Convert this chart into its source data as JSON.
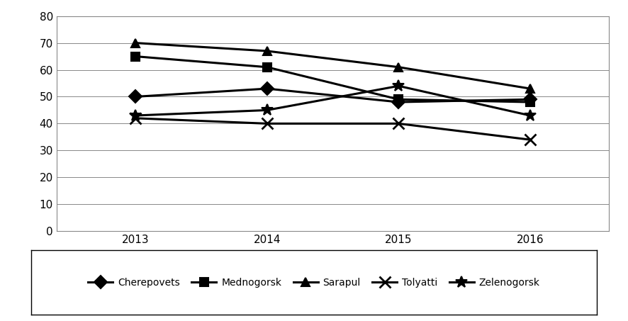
{
  "years": [
    2013,
    2014,
    2015,
    2016
  ],
  "series": {
    "Cherepovets": [
      50,
      53,
      48,
      49
    ],
    "Mednogorsk": [
      65,
      61,
      49,
      48
    ],
    "Sarapul": [
      70,
      67,
      61,
      53
    ],
    "Tolyatti": [
      42,
      40,
      40,
      34
    ],
    "Zelenogorsk": [
      43,
      45,
      54,
      43
    ]
  },
  "markers": {
    "Cherepovets": "D",
    "Mednogorsk": "s",
    "Sarapul": "^",
    "Tolyatti": "x",
    "Zelenogorsk": "*"
  },
  "ylim": [
    0,
    80
  ],
  "yticks": [
    0,
    10,
    20,
    30,
    40,
    50,
    60,
    70,
    80
  ],
  "line_color": "#000000",
  "background_color": "#ffffff",
  "legend_labels": [
    "Cherepovets",
    "Mednogorsk",
    "Sarapul",
    "Tolyatti",
    "Zelenogorsk"
  ],
  "linewidth": 2.2,
  "markersize": 9
}
